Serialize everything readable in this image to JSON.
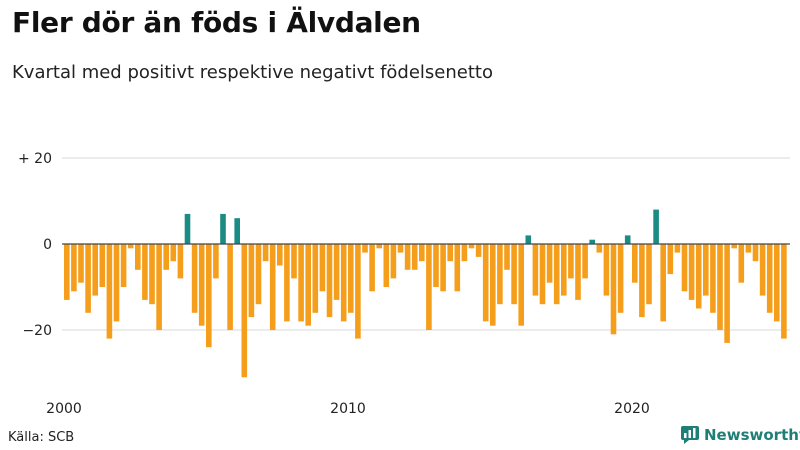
{
  "title": "Fler dör än föds i Älvdalen",
  "subtitle": "Kvartal med positivt respektive negativt födelsenetto",
  "source": "Källa: SCB",
  "brand": "Newsworthy",
  "colors": {
    "positive": "#1a8c84",
    "negative": "#f59e1c",
    "grid": "#d9d9d9",
    "zero": "#444444"
  },
  "chart_data": {
    "type": "bar",
    "title": "Fler dör än föds i Älvdalen",
    "subtitle": "Kvartal med positivt respektive negativt födelsenetto",
    "xlabel": "",
    "ylabel": "",
    "ylim": [
      -32,
      22
    ],
    "yticks": [
      {
        "value": 20,
        "label": "+ 20"
      },
      {
        "value": 0,
        "label": "0"
      },
      {
        "value": -20,
        "label": "−20"
      }
    ],
    "xticks": [
      {
        "index": 0,
        "label": "2000"
      },
      {
        "index": 40,
        "label": "2010"
      },
      {
        "index": 80,
        "label": "2020"
      }
    ],
    "start": "2000 Q1",
    "values": [
      -13,
      -11,
      -9,
      -16,
      -12,
      -10,
      -22,
      -18,
      -10,
      -1,
      -6,
      -13,
      -14,
      -20,
      -6,
      -4,
      -8,
      7,
      -16,
      -19,
      -24,
      -8,
      7,
      -20,
      6,
      -31,
      -17,
      -14,
      -4,
      -20,
      -5,
      -18,
      -8,
      -18,
      -19,
      -16,
      -11,
      -17,
      -13,
      -18,
      -16,
      -22,
      -2,
      -11,
      -1,
      -10,
      -8,
      -2,
      -6,
      -6,
      -4,
      -20,
      -10,
      -11,
      -4,
      -11,
      -4,
      -1,
      -3,
      -18,
      -19,
      -14,
      -6,
      -14,
      -19,
      2,
      -12,
      -14,
      -9,
      -14,
      -12,
      -8,
      -13,
      -8,
      1,
      -2,
      -12,
      -21,
      -16,
      2,
      -9,
      -17,
      -14,
      8,
      -18,
      -7,
      -2,
      -11,
      -13,
      -15,
      -12,
      -16,
      -20,
      -23,
      -1,
      -9,
      -2,
      -4,
      -12,
      -16,
      -18,
      -22
    ]
  }
}
